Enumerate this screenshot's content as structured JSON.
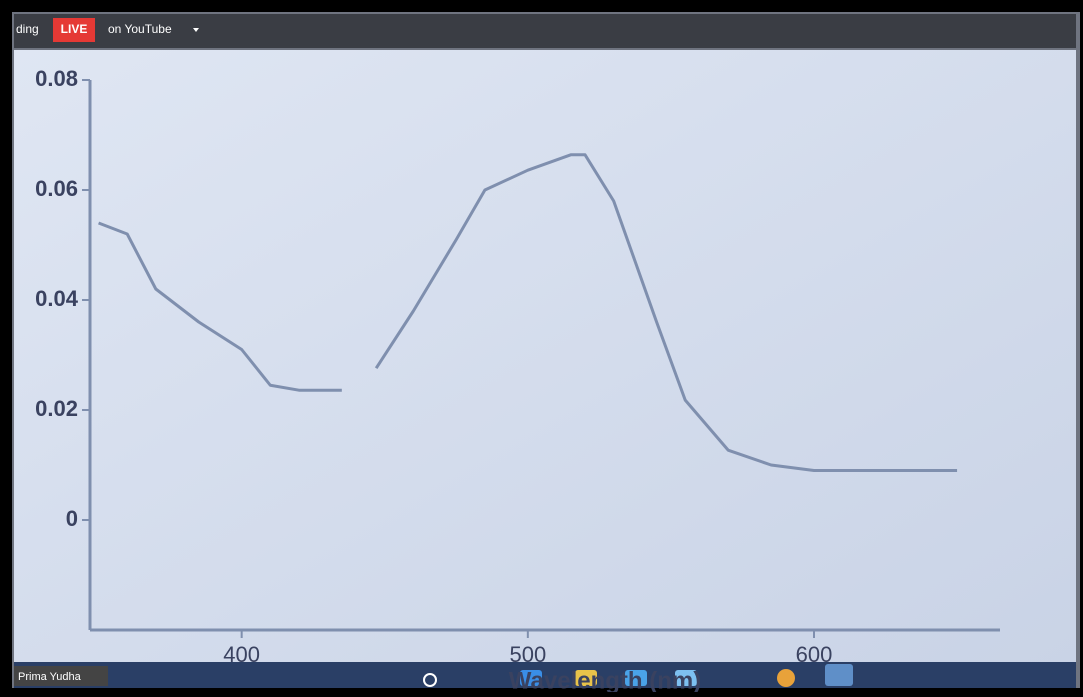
{
  "stream_bar": {
    "recording": "ding",
    "live": "LIVE",
    "platform": "on YouTube"
  },
  "participant": "Prima Yudha",
  "chart_data": {
    "type": "line",
    "x_label": "Wavelength (nm)",
    "x": [
      350,
      360,
      370,
      385,
      400,
      410,
      420,
      435,
      441,
      447,
      460,
      475,
      485,
      500,
      515,
      520,
      530,
      545,
      555,
      570,
      585,
      600,
      620,
      650
    ],
    "values": [
      0.054,
      0.052,
      0.042,
      0.036,
      0.031,
      0.0245,
      0.0236,
      0.0236,
      null,
      0.0276,
      0.038,
      0.051,
      0.06,
      0.0636,
      0.0664,
      0.0664,
      0.058,
      0.036,
      0.0218,
      0.0127,
      0.01,
      0.009,
      0.009,
      0.009
    ],
    "color": "#7f8fae",
    "xlim": [
      347,
      665
    ],
    "ylim": [
      -0.02,
      0.08
    ],
    "xticks": [
      400,
      500,
      600
    ],
    "yticks": [
      0,
      0.02,
      0.04,
      0.06,
      0.08
    ],
    "grid": false
  }
}
